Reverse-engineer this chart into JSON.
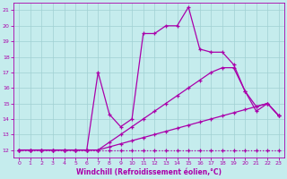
{
  "xlabel": "Windchill (Refroidissement éolien,°C)",
  "bg_color": "#c5eced",
  "grid_color": "#a0d0d2",
  "line_color": "#aa00aa",
  "xlim": [
    -0.5,
    23.5
  ],
  "ylim": [
    11.5,
    21.5
  ],
  "xticks": [
    0,
    1,
    2,
    3,
    4,
    5,
    6,
    7,
    8,
    9,
    10,
    11,
    12,
    13,
    14,
    15,
    16,
    17,
    18,
    19,
    20,
    21,
    22,
    23
  ],
  "yticks": [
    12,
    13,
    14,
    15,
    16,
    17,
    18,
    19,
    20,
    21
  ],
  "line1_x": [
    0,
    1,
    2,
    3,
    4,
    5,
    6,
    7,
    8,
    9,
    10,
    11,
    12,
    13,
    14,
    15,
    16,
    17,
    18,
    19,
    20,
    21,
    22,
    23
  ],
  "line1_y": [
    12,
    12,
    12,
    12,
    12,
    12,
    12,
    12,
    12,
    12,
    12,
    12,
    12,
    12,
    12,
    12,
    12,
    12,
    12,
    12,
    12,
    12,
    12,
    12
  ],
  "line2_x": [
    0,
    1,
    2,
    3,
    4,
    5,
    6,
    7,
    8,
    9,
    10,
    11,
    12,
    13,
    14,
    15,
    16,
    17,
    18,
    19,
    20,
    21,
    22,
    23
  ],
  "line2_y": [
    12,
    12,
    12,
    12,
    12,
    12,
    12,
    12,
    12.2,
    12.4,
    12.6,
    12.8,
    13.0,
    13.2,
    13.4,
    13.6,
    13.8,
    14.0,
    14.2,
    14.4,
    14.6,
    14.8,
    15.0,
    14.2
  ],
  "line3_x": [
    0,
    1,
    2,
    3,
    4,
    5,
    6,
    7,
    8,
    9,
    10,
    11,
    12,
    13,
    14,
    15,
    16,
    17,
    18,
    19,
    20,
    21,
    22,
    23
  ],
  "line3_y": [
    12,
    12,
    12,
    12,
    12,
    12,
    12,
    12,
    12.5,
    13.0,
    13.5,
    14.0,
    14.5,
    15.0,
    15.5,
    16.0,
    16.5,
    17.0,
    17.3,
    17.3,
    15.8,
    14.8,
    15.0,
    14.2
  ],
  "line4_x": [
    0,
    1,
    2,
    3,
    4,
    5,
    6,
    7,
    8,
    9,
    10,
    11,
    12,
    13,
    14,
    15,
    16,
    17,
    18,
    19,
    20,
    21,
    22,
    23
  ],
  "line4_y": [
    12,
    12,
    12,
    12,
    12,
    12,
    12,
    17.0,
    14.3,
    13.5,
    14.0,
    19.5,
    19.5,
    20.0,
    20.0,
    21.2,
    18.5,
    18.3,
    18.3,
    17.5,
    15.8,
    14.5,
    15.0,
    14.2
  ]
}
